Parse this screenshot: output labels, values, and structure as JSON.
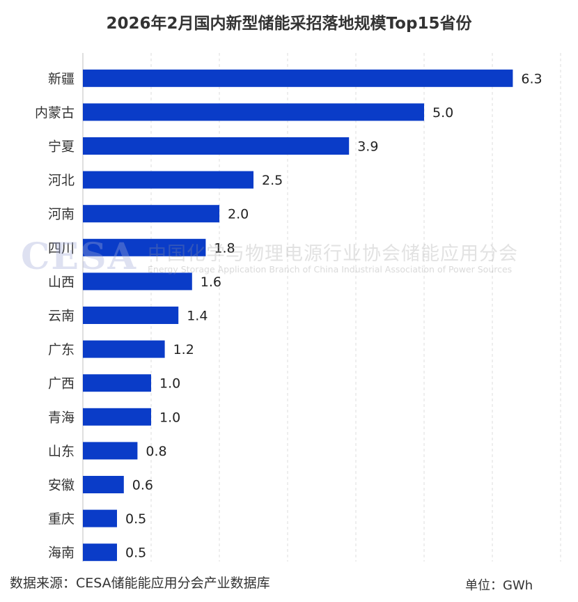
{
  "watermark": {
    "logo": "CESA",
    "cn": "中国化学与物理电源行业协会储能应用分会",
    "en": "Energy Storage Application Branch of China Industrial Association of Power Sources"
  },
  "footer": {
    "source": "数据来源：CESA储能能应用分会产业数据库",
    "unit": "单位：GWh"
  },
  "colors": {
    "bar": "#0a3cc8"
  },
  "chart_data": {
    "type": "bar",
    "orientation": "horizontal",
    "title": "2026年2月国内新型储能采招落地规模Top15省份",
    "categories": [
      "新疆",
      "内蒙古",
      "宁夏",
      "河北",
      "河南",
      "四川",
      "山西",
      "云南",
      "广东",
      "广西",
      "青海",
      "山东",
      "安徽",
      "重庆",
      "海南"
    ],
    "values": [
      6.3,
      5.0,
      3.9,
      2.5,
      2.0,
      1.8,
      1.6,
      1.4,
      1.2,
      1.0,
      1.0,
      0.8,
      0.6,
      0.5,
      0.5
    ],
    "value_labels": [
      "6.3",
      "5.0",
      "3.9",
      "2.5",
      "2.0",
      "1.8",
      "1.6",
      "1.4",
      "1.2",
      "1.0",
      "1.0",
      "0.8",
      "0.6",
      "0.5",
      "0.5"
    ],
    "xlim": [
      0,
      7
    ],
    "grid": true,
    "data_labels": true
  }
}
